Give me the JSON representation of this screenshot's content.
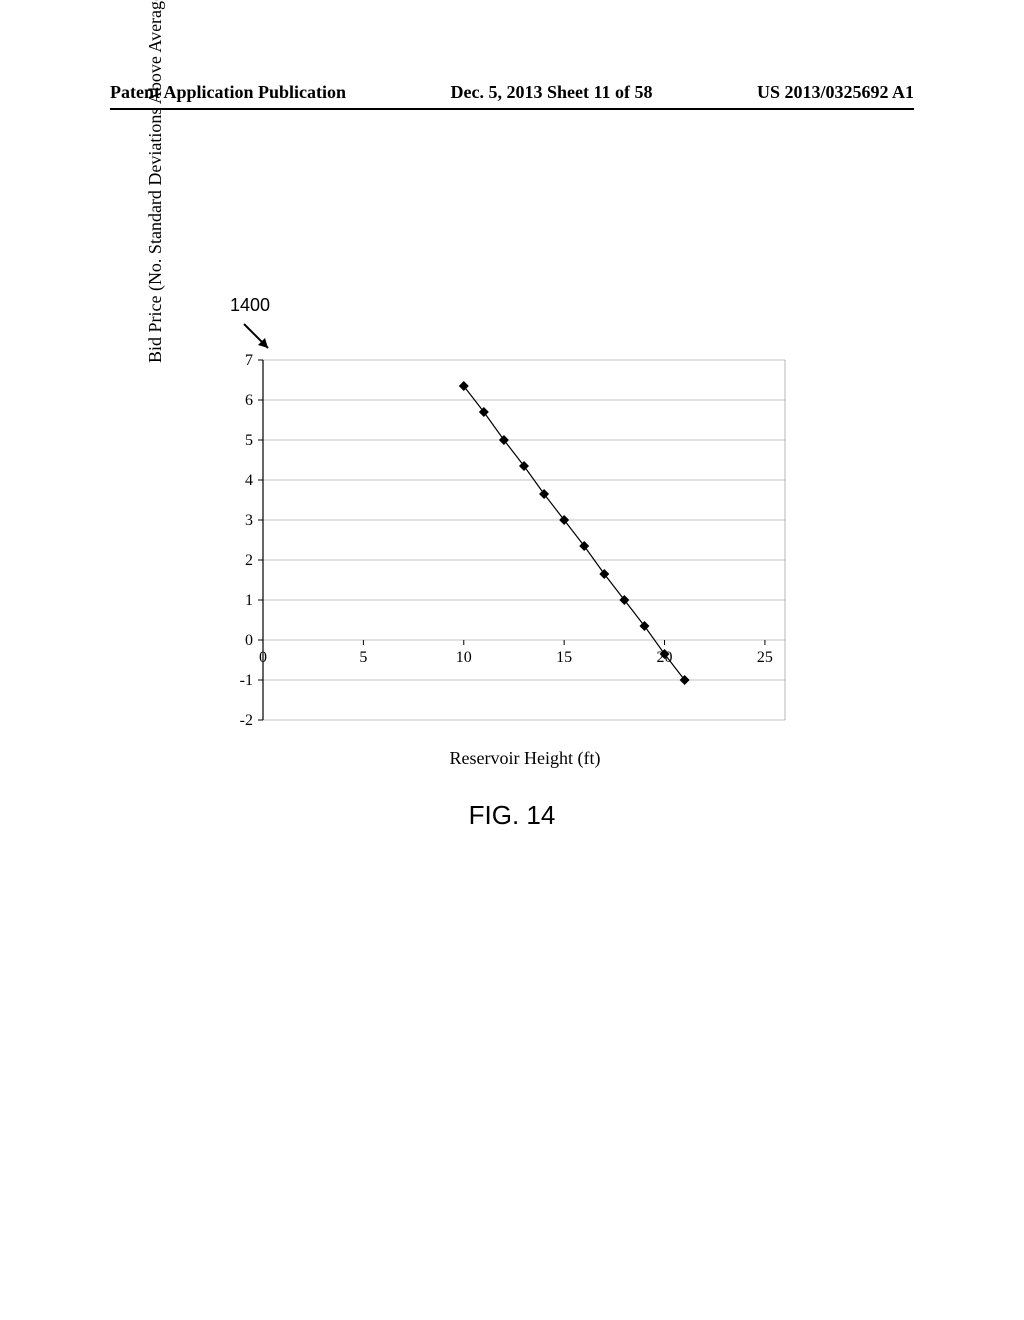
{
  "header": {
    "left": "Patent Application Publication",
    "center": "Dec. 5, 2013  Sheet 11 of 58",
    "right": "US 2013/0325692 A1"
  },
  "figure": {
    "callout": "1400",
    "caption": "FIG. 14",
    "chart": {
      "type": "line",
      "xlabel": "Reservoir Height (ft)",
      "ylabel": "Bid Price  (No. Standard Deviations Above Average)",
      "xlim": [
        0,
        26
      ],
      "ylim": [
        -2,
        7
      ],
      "xticks": [
        0,
        5,
        10,
        15,
        20,
        25
      ],
      "yticks": [
        -2,
        -1,
        0,
        1,
        2,
        3,
        4,
        5,
        6,
        7
      ],
      "grid_y": [
        -1,
        0,
        1,
        2,
        3,
        4,
        5,
        6
      ],
      "grid_color": "#888888",
      "axis_color": "#000000",
      "background_color": "#ffffff",
      "line_color": "#000000",
      "marker_color": "#000000",
      "marker_size": 5,
      "line_width": 1.2,
      "label_fontsize": 18,
      "tick_fontsize": 16,
      "font_family": "Times New Roman",
      "points": [
        {
          "x": 10,
          "y": 6.35
        },
        {
          "x": 11,
          "y": 5.7
        },
        {
          "x": 12,
          "y": 5.0
        },
        {
          "x": 13,
          "y": 4.35
        },
        {
          "x": 14,
          "y": 3.65
        },
        {
          "x": 15,
          "y": 3.0
        },
        {
          "x": 16,
          "y": 2.35
        },
        {
          "x": 17,
          "y": 1.65
        },
        {
          "x": 18,
          "y": 1.0
        },
        {
          "x": 19,
          "y": 0.35
        },
        {
          "x": 20,
          "y": -0.35
        },
        {
          "x": 21,
          "y": -1.0
        }
      ]
    }
  }
}
